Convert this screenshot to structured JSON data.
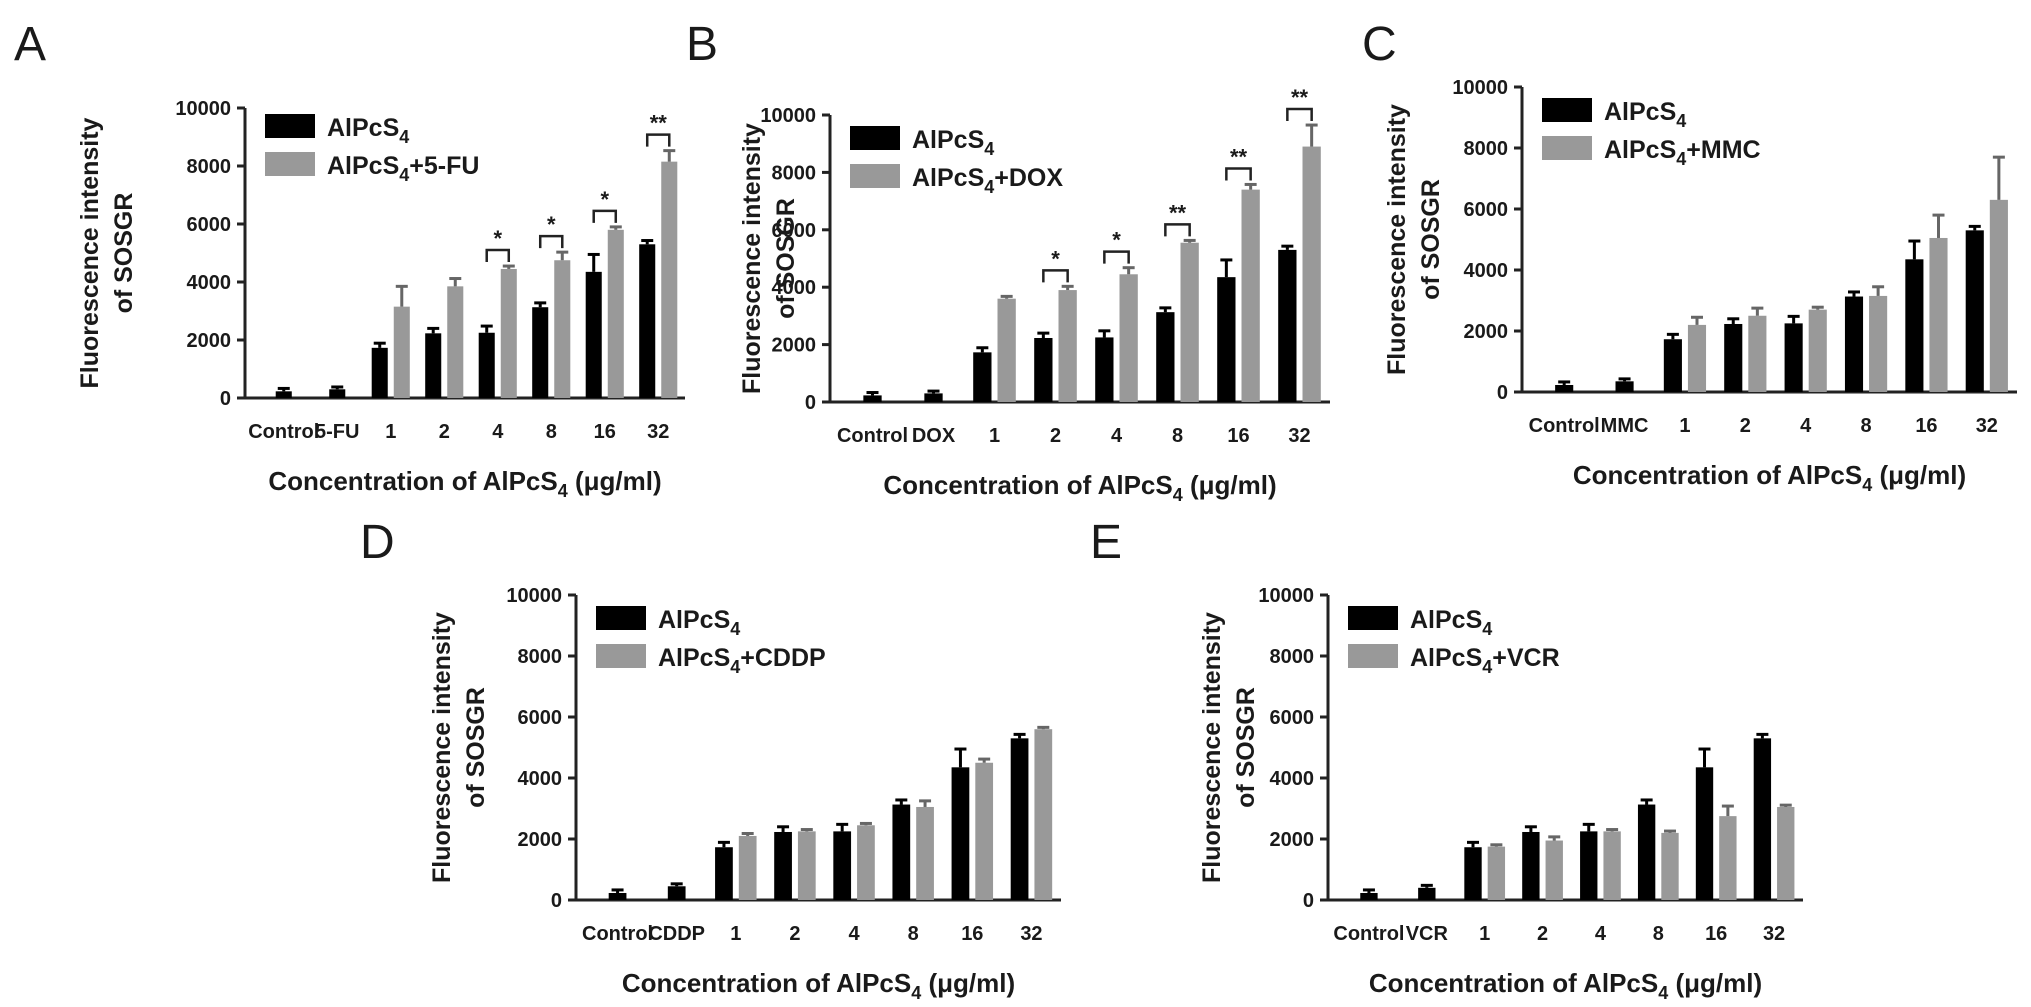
{
  "chart_data": [
    {
      "type": "bar",
      "panel": "A",
      "categories": [
        "Control",
        "5-FU",
        "1",
        "2",
        "4",
        "8",
        "16",
        "32"
      ],
      "series": [
        {
          "name": "AlPcS4",
          "color": "#000000",
          "values": [
            230,
            300,
            1730,
            2230,
            2250,
            3130,
            4350,
            5300
          ],
          "errors": [
            100,
            80,
            160,
            170,
            230,
            150,
            600,
            130
          ]
        },
        {
          "name": "AlPcS4+5-FU",
          "color": "#999999",
          "values": [
            null,
            null,
            3150,
            3850,
            4450,
            4750,
            5800,
            8150
          ],
          "errors": [
            null,
            null,
            700,
            270,
            100,
            280,
            100,
            380
          ]
        }
      ],
      "significance": [
        {
          "category": "4",
          "label": "*"
        },
        {
          "category": "8",
          "label": "*"
        },
        {
          "category": "16",
          "label": "*"
        },
        {
          "category": "32",
          "label": "**"
        }
      ],
      "legend": [
        "AlPcS",
        "AlPcS+5-FU"
      ],
      "yticks": [
        "0",
        "2000",
        "4000",
        "6000",
        "8000",
        "10000"
      ],
      "xlabel": "Concentration of AlPcS4 (μg/ml)",
      "xlabel_parts": {
        "pre": "Concentration of AlPcS",
        "sub": "4",
        "post": " (μg/ml)"
      },
      "ylabel": [
        "Fluorescence intensity",
        "of SOSGR"
      ],
      "ylim": [
        0,
        10000
      ],
      "legend_position": "top-left"
    },
    {
      "type": "bar",
      "panel": "B",
      "categories": [
        "Control",
        "DOX",
        "1",
        "2",
        "4",
        "8",
        "16",
        "32"
      ],
      "series": [
        {
          "name": "AlPcS4",
          "color": "#000000",
          "values": [
            230,
            300,
            1730,
            2230,
            2250,
            3130,
            4350,
            5300
          ],
          "errors": [
            100,
            80,
            160,
            170,
            230,
            150,
            600,
            130
          ]
        },
        {
          "name": "AlPcS4+DOX",
          "color": "#999999",
          "values": [
            null,
            null,
            3600,
            3900,
            4450,
            5550,
            7400,
            8900
          ],
          "errors": [
            null,
            null,
            80,
            130,
            230,
            80,
            180,
            750
          ]
        }
      ],
      "significance": [
        {
          "category": "2",
          "label": "*"
        },
        {
          "category": "4",
          "label": "*"
        },
        {
          "category": "8",
          "label": "**"
        },
        {
          "category": "16",
          "label": "**"
        },
        {
          "category": "32",
          "label": "**"
        }
      ],
      "legend": [
        "AlPcS",
        "AlPcS+DOX"
      ],
      "yticks": [
        "0",
        "2000",
        "4000",
        "6000",
        "8000",
        "10000"
      ],
      "xlabel": "Concentration of AlPcS4 (μg/ml)",
      "xlabel_parts": {
        "pre": "Concentration of AlPcS",
        "sub": "4",
        "post": " (μg/ml)"
      },
      "ylabel": [
        "Fluorescence intensity",
        "of SOSGR"
      ],
      "ylim": [
        0,
        10000
      ],
      "legend_position": "top-left"
    },
    {
      "type": "bar",
      "panel": "C",
      "categories": [
        "Control",
        "MMC",
        "1",
        "2",
        "4",
        "8",
        "16",
        "32"
      ],
      "series": [
        {
          "name": "AlPcS4",
          "color": "#000000",
          "values": [
            230,
            350,
            1730,
            2230,
            2250,
            3130,
            4350,
            5300
          ],
          "errors": [
            100,
            80,
            160,
            170,
            230,
            150,
            600,
            130
          ]
        },
        {
          "name": "AlPcS4+MMC",
          "color": "#999999",
          "values": [
            null,
            null,
            2200,
            2500,
            2700,
            3150,
            5050,
            6300
          ],
          "errors": [
            null,
            null,
            250,
            250,
            80,
            300,
            750,
            1400
          ]
        }
      ],
      "significance": [],
      "legend": [
        "AlPcS",
        "AlPcS+MMC"
      ],
      "yticks": [
        "0",
        "2000",
        "4000",
        "6000",
        "8000",
        "10000"
      ],
      "xlabel": "Concentration of AlPcS4 (μg/ml)",
      "xlabel_parts": {
        "pre": "Concentration of AlPcS",
        "sub": "4",
        "post": " (μg/ml)"
      },
      "ylabel": [
        "Fluorescence intensity",
        "of SOSGR"
      ],
      "ylim": [
        0,
        10000
      ],
      "legend_position": "top-left"
    },
    {
      "type": "bar",
      "panel": "D",
      "categories": [
        "Control",
        "CDDP",
        "1",
        "2",
        "4",
        "8",
        "16",
        "32"
      ],
      "series": [
        {
          "name": "AlPcS4",
          "color": "#000000",
          "values": [
            230,
            450,
            1730,
            2230,
            2250,
            3130,
            4350,
            5300
          ],
          "errors": [
            100,
            80,
            160,
            170,
            230,
            150,
            600,
            130
          ]
        },
        {
          "name": "AlPcS4+CDDP",
          "color": "#999999",
          "values": [
            null,
            null,
            2100,
            2250,
            2450,
            3050,
            4500,
            5600
          ],
          "errors": [
            null,
            null,
            80,
            60,
            60,
            200,
            120,
            60
          ]
        }
      ],
      "significance": [],
      "legend": [
        "AlPcS",
        "AlPcS+CDDP"
      ],
      "yticks": [
        "0",
        "2000",
        "4000",
        "6000",
        "8000",
        "10000"
      ],
      "xlabel": "Concentration of AlPcS4 (μg/ml)",
      "xlabel_parts": {
        "pre": "Concentration of AlPcS",
        "sub": "4",
        "post": " (μg/ml)"
      },
      "ylabel": [
        "Fluorescence intensity",
        "of SOSGR"
      ],
      "ylim": [
        0,
        10000
      ],
      "legend_position": "top-left"
    },
    {
      "type": "bar",
      "panel": "E",
      "categories": [
        "Control",
        "VCR",
        "1",
        "2",
        "4",
        "8",
        "16",
        "32"
      ],
      "series": [
        {
          "name": "AlPcS4",
          "color": "#000000",
          "values": [
            230,
            400,
            1730,
            2230,
            2250,
            3130,
            4350,
            5300
          ],
          "errors": [
            100,
            80,
            160,
            170,
            230,
            150,
            600,
            130
          ]
        },
        {
          "name": "AlPcS4+VCR",
          "color": "#999999",
          "values": [
            null,
            null,
            1750,
            1950,
            2250,
            2200,
            2750,
            3050
          ],
          "errors": [
            null,
            null,
            60,
            120,
            60,
            60,
            330,
            60
          ]
        }
      ],
      "significance": [],
      "legend": [
        "AlPcS",
        "AlPcS+VCR"
      ],
      "yticks": [
        "0",
        "2000",
        "4000",
        "6000",
        "8000",
        "10000"
      ],
      "xlabel": "Concentration of AlPcS4 (μg/ml)",
      "xlabel_parts": {
        "pre": "Concentration of AlPcS",
        "sub": "4",
        "post": " (μg/ml)"
      },
      "ylabel": [
        "Fluorescence intensity",
        "of SOSGR"
      ],
      "ylim": [
        0,
        10000
      ],
      "legend_position": "top-left"
    }
  ]
}
